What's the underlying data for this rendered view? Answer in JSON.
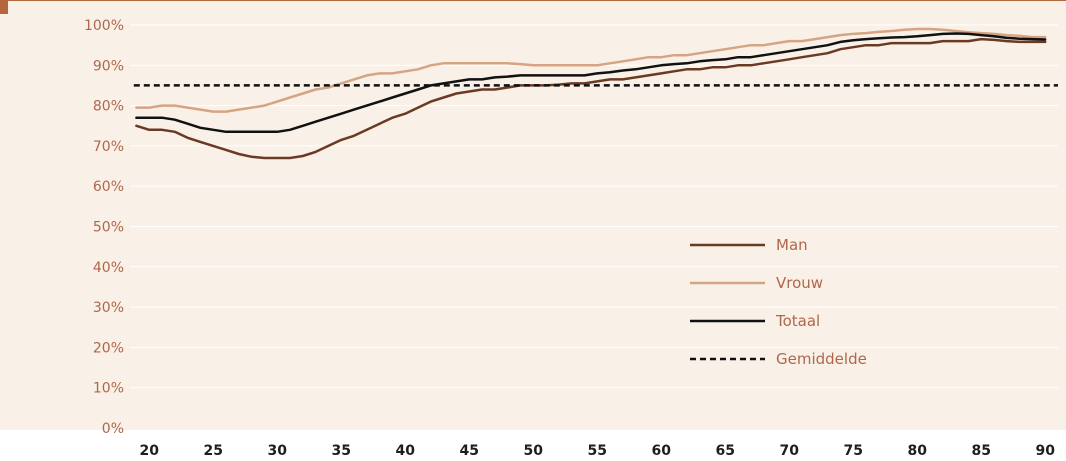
{
  "colors": {
    "background": "#f9f1e7",
    "accent": "#b5663a",
    "grid": "#ffffff",
    "label": "#b0664a",
    "xtick": "#1e1e1e"
  },
  "chart_data": {
    "type": "line",
    "title": "",
    "xlabel": "",
    "ylabel": "",
    "xlim": [
      18.5,
      91
    ],
    "ylim": [
      0,
      100
    ],
    "y_unit": "%",
    "grid": true,
    "legend_position": "right",
    "x_ticks": [
      20,
      25,
      30,
      35,
      40,
      45,
      50,
      55,
      60,
      65,
      70,
      75,
      80,
      85,
      90
    ],
    "y_ticks": [
      "0%",
      "10%",
      "20%",
      "30%",
      "40%",
      "50%",
      "60%",
      "70%",
      "80%",
      "90%",
      "100%"
    ],
    "series": [
      {
        "name": "Man",
        "color": "#6b3a24",
        "style": "solid",
        "x": [
          19,
          20,
          21,
          22,
          23,
          24,
          25,
          26,
          27,
          28,
          29,
          30,
          31,
          32,
          33,
          34,
          35,
          36,
          37,
          38,
          39,
          40,
          41,
          42,
          43,
          44,
          45,
          46,
          47,
          48,
          49,
          50,
          51,
          52,
          53,
          54,
          55,
          56,
          57,
          58,
          59,
          60,
          61,
          62,
          63,
          64,
          65,
          66,
          67,
          68,
          69,
          70,
          71,
          72,
          73,
          74,
          75,
          76,
          77,
          78,
          79,
          80,
          81,
          82,
          83,
          84,
          85,
          86,
          87,
          88,
          89,
          90
        ],
        "y": [
          75,
          74,
          74,
          73.5,
          72,
          71,
          70,
          69,
          68,
          67.3,
          67,
          67,
          67,
          67.5,
          68.5,
          70,
          71.5,
          72.5,
          74,
          75.5,
          77,
          78,
          79.5,
          81,
          82,
          83,
          83.5,
          84,
          84,
          84.5,
          85,
          85,
          85,
          85.2,
          85.5,
          85.5,
          86,
          86.5,
          86.5,
          87,
          87.5,
          88,
          88.5,
          89,
          89,
          89.5,
          89.5,
          90,
          90,
          90.5,
          91,
          91.5,
          92,
          92.5,
          93,
          94,
          94.5,
          95,
          95,
          95.5,
          95.5,
          95.5,
          95.5,
          96,
          96,
          96,
          96.5,
          96.3,
          96,
          95.8,
          95.8,
          95.8
        ]
      },
      {
        "name": "Vrouw",
        "color": "#d6a483",
        "style": "solid",
        "x": [
          19,
          20,
          21,
          22,
          23,
          24,
          25,
          26,
          27,
          28,
          29,
          30,
          31,
          32,
          33,
          34,
          35,
          36,
          37,
          38,
          39,
          40,
          41,
          42,
          43,
          44,
          45,
          46,
          47,
          48,
          49,
          50,
          51,
          52,
          53,
          54,
          55,
          56,
          57,
          58,
          59,
          60,
          61,
          62,
          63,
          64,
          65,
          66,
          67,
          68,
          69,
          70,
          71,
          72,
          73,
          74,
          75,
          76,
          77,
          78,
          79,
          80,
          81,
          82,
          83,
          84,
          85,
          86,
          87,
          88,
          89,
          90
        ],
        "y": [
          79.5,
          79.5,
          80,
          80,
          79.5,
          79,
          78.5,
          78.5,
          79,
          79.5,
          80,
          81,
          82,
          83,
          84,
          84.5,
          85.5,
          86.5,
          87.5,
          88,
          88,
          88.5,
          89,
          90,
          90.5,
          90.5,
          90.5,
          90.5,
          90.5,
          90.5,
          90.3,
          90,
          90,
          90,
          90,
          90,
          90,
          90.5,
          91,
          91.5,
          92,
          92,
          92.5,
          92.5,
          93,
          93.5,
          94,
          94.5,
          95,
          95,
          95.5,
          96,
          96,
          96.5,
          97,
          97.5,
          97.8,
          98,
          98.3,
          98.5,
          98.8,
          99,
          99,
          98.8,
          98.5,
          98.2,
          98,
          97.8,
          97.5,
          97.3,
          97,
          97
        ]
      },
      {
        "name": "Totaal",
        "color": "#111111",
        "style": "solid",
        "x": [
          19,
          20,
          21,
          22,
          23,
          24,
          25,
          26,
          27,
          28,
          29,
          30,
          31,
          32,
          33,
          34,
          35,
          36,
          37,
          38,
          39,
          40,
          41,
          42,
          43,
          44,
          45,
          46,
          47,
          48,
          49,
          50,
          51,
          52,
          53,
          54,
          55,
          56,
          57,
          58,
          59,
          60,
          61,
          62,
          63,
          64,
          65,
          66,
          67,
          68,
          69,
          70,
          71,
          72,
          73,
          74,
          75,
          76,
          77,
          78,
          79,
          80,
          81,
          82,
          83,
          84,
          85,
          86,
          87,
          88,
          89,
          90
        ],
        "y": [
          77,
          77,
          77,
          76.5,
          75.5,
          74.5,
          74,
          73.5,
          73.5,
          73.5,
          73.5,
          73.5,
          74,
          75,
          76,
          77,
          78,
          79,
          80,
          81,
          82,
          83,
          84,
          85,
          85.5,
          86,
          86.5,
          86.5,
          87,
          87.2,
          87.5,
          87.5,
          87.5,
          87.5,
          87.5,
          87.5,
          88,
          88.3,
          88.7,
          89,
          89.5,
          90,
          90.3,
          90.5,
          91,
          91.3,
          91.5,
          92,
          92,
          92.5,
          93,
          93.5,
          94,
          94.5,
          95,
          95.8,
          96.2,
          96.5,
          96.7,
          96.9,
          97,
          97.2,
          97.5,
          97.8,
          97.9,
          97.8,
          97.5,
          97.2,
          96.8,
          96.6,
          96.5,
          96.4
        ]
      },
      {
        "name": "Gemiddelde",
        "color": "#111111",
        "style": "dashed",
        "x": [
          18.8,
          91
        ],
        "y": [
          85,
          85
        ]
      }
    ]
  }
}
